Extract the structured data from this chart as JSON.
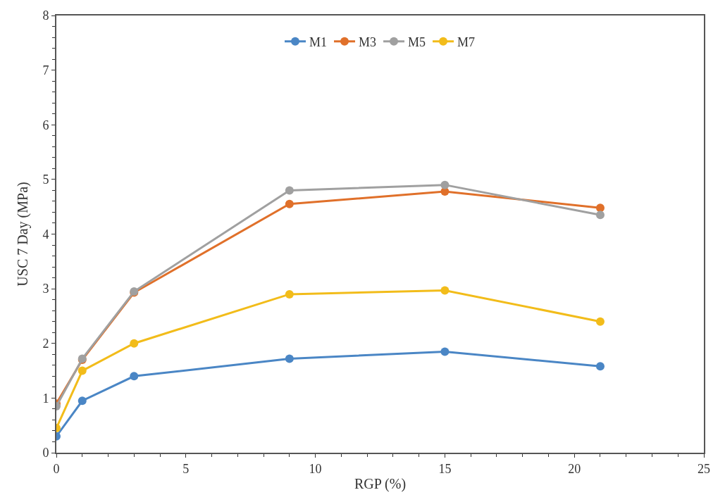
{
  "chart_data": {
    "type": "line",
    "xlabel": "RGP (%)",
    "ylabel": "USC 7 Day (MPa)",
    "x": [
      0,
      1,
      3,
      9,
      15,
      21
    ],
    "series": [
      {
        "name": "M1",
        "color": "#4a86c5",
        "values": [
          0.3,
          0.95,
          1.4,
          1.72,
          1.85,
          1.58
        ]
      },
      {
        "name": "M3",
        "color": "#e0702a",
        "values": [
          0.9,
          1.7,
          2.93,
          4.55,
          4.78,
          4.48
        ]
      },
      {
        "name": "M5",
        "color": "#a0a0a0",
        "values": [
          0.85,
          1.72,
          2.95,
          4.8,
          4.9,
          4.35
        ]
      },
      {
        "name": "M7",
        "color": "#f2bc1a",
        "values": [
          0.45,
          1.5,
          2.0,
          2.9,
          2.97,
          2.4
        ]
      }
    ],
    "xlim": [
      0,
      25
    ],
    "xticks": [
      0,
      5,
      10,
      15,
      20,
      25
    ],
    "ylim": [
      0,
      8
    ],
    "yticks": [
      0,
      1,
      2,
      3,
      4,
      5,
      6,
      7,
      8
    ],
    "legend": "top",
    "marker": "circle",
    "line_style": "solid"
  }
}
